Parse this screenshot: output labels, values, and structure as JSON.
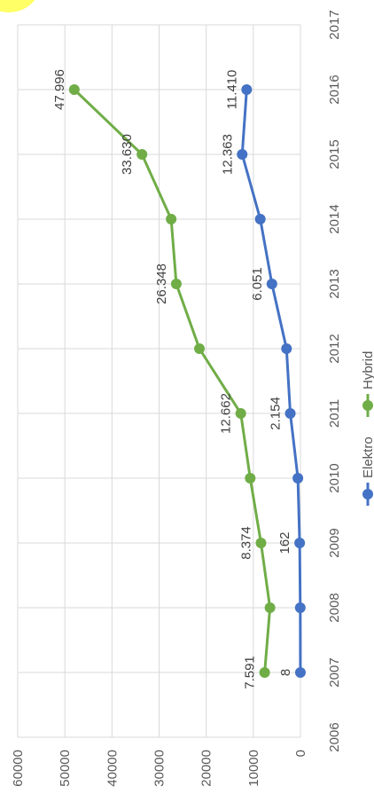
{
  "chart_data": {
    "type": "line",
    "orientation": "rotated-90-clockwise",
    "title": "",
    "xlabel": "",
    "ylabel": "",
    "xlim": [
      2006,
      2017
    ],
    "ylim": [
      0,
      60000
    ],
    "x_ticks": [
      2006,
      2007,
      2008,
      2009,
      2010,
      2011,
      2012,
      2013,
      2014,
      2015,
      2016,
      2017
    ],
    "y_ticks": [
      0,
      10000,
      20000,
      30000,
      40000,
      50000,
      60000
    ],
    "grid": true,
    "legend_position": "bottom",
    "x": [
      2007,
      2008,
      2009,
      2010,
      2011,
      2012,
      2013,
      2014,
      2015,
      2016
    ],
    "series": [
      {
        "name": "Elektro",
        "color": "#4472c4",
        "values": [
          8,
          36,
          162,
          541,
          2154,
          2956,
          6051,
          8522,
          12363,
          11410
        ],
        "labels": [
          "8",
          "",
          "162",
          "",
          "2.154",
          "",
          "6.051",
          "",
          "12.363",
          "11.410"
        ]
      },
      {
        "name": "Hybrid",
        "color": "#70ad47",
        "values": [
          7591,
          6464,
          8374,
          10661,
          12662,
          21438,
          26348,
          27435,
          33630,
          47996
        ],
        "labels": [
          "7.591",
          "",
          "8.374",
          "",
          "12.662",
          "",
          "26.348",
          "",
          "33.630",
          "47.996"
        ]
      }
    ],
    "decoration_color": "#ffff66"
  }
}
